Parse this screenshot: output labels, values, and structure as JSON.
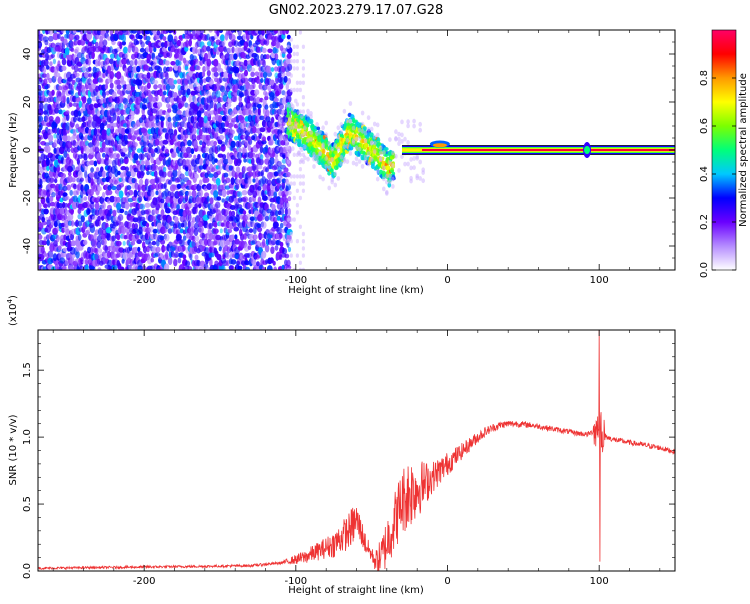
{
  "title": "GN02.2023.279.17.07.G28",
  "chart_data": [
    {
      "type": "heatmap",
      "title": "GN02.2023.279.17.07.G28",
      "xlabel": "Height of straight line (km)",
      "ylabel": "Frequency (Hz)",
      "xlim": [
        -270,
        150
      ],
      "ylim": [
        -50,
        50
      ],
      "x_ticks": [
        -200,
        -100,
        0,
        100
      ],
      "y_ticks": [
        -40,
        -20,
        0,
        20,
        40
      ],
      "x_tick_labels": [
        "-200",
        "-100",
        "0",
        "100"
      ],
      "y_tick_labels": [
        "-40",
        "-20",
        "0",
        "20",
        "40"
      ],
      "colorbar": {
        "label": "Normalized spectral amplitude",
        "range": [
          0.0,
          1.0
        ],
        "ticks": [
          0.0,
          0.2,
          0.4,
          0.6,
          0.8
        ],
        "tick_labels": [
          "0.0",
          "0.2",
          "0.4",
          "0.6",
          "0.8"
        ],
        "colormap": [
          "#ffffff",
          "#b58cff",
          "#6a00ff",
          "#0000ff",
          "#00c8ff",
          "#00ff7a",
          "#7cff00",
          "#ffff00",
          "#ff9a00",
          "#ff0000",
          "#ff0066"
        ]
      },
      "features": {
        "noise_region_x": [
          -270,
          -105
        ],
        "noise_amplitude": 0.15,
        "scattered_region_x": [
          -105,
          -35
        ],
        "scattered_center_frequency": [
          [
            -105,
            12
          ],
          [
            -95,
            8
          ],
          [
            -85,
            2
          ],
          [
            -75,
            -5
          ],
          [
            -65,
            8
          ],
          [
            -55,
            3
          ],
          [
            -45,
            -3
          ],
          [
            -38,
            -8
          ],
          [
            -32,
            0
          ]
        ],
        "line_start_x": -30,
        "line_frequency": 0,
        "line_amplitude": 0.95,
        "spike_x": 92
      }
    },
    {
      "type": "line",
      "xlabel": "Height of straight line (km)",
      "ylabel": "SNR (10 * v/v)",
      "y_scale_label": "(x10",
      "y_scale_exp": "4",
      "y_scale_close": ")",
      "xlim": [
        -270,
        150
      ],
      "ylim": [
        0,
        1.8
      ],
      "x_ticks": [
        -200,
        -100,
        0,
        100
      ],
      "y_ticks": [
        0.0,
        0.5,
        1.0,
        1.5
      ],
      "x_tick_labels": [
        "-200",
        "-100",
        "0",
        "100"
      ],
      "y_tick_labels": [
        "0.0",
        "0.5",
        "1.0",
        "1.5"
      ],
      "color": "#ee3333",
      "envelope": [
        [
          -270,
          0.02
        ],
        [
          -240,
          0.025
        ],
        [
          -200,
          0.03
        ],
        [
          -160,
          0.035
        ],
        [
          -130,
          0.04
        ],
        [
          -110,
          0.06
        ],
        [
          -95,
          0.1
        ],
        [
          -85,
          0.15
        ],
        [
          -75,
          0.2
        ],
        [
          -65,
          0.3
        ],
        [
          -60,
          0.38
        ],
        [
          -57,
          0.3
        ],
        [
          -54,
          0.2
        ],
        [
          -50,
          0.12
        ],
        [
          -47,
          0.07
        ],
        [
          -43,
          0.12
        ],
        [
          -39,
          0.25
        ],
        [
          -34,
          0.4
        ],
        [
          -30,
          0.52
        ],
        [
          -26,
          0.58
        ],
        [
          -20,
          0.62
        ],
        [
          -15,
          0.65
        ],
        [
          -10,
          0.7
        ],
        [
          -5,
          0.75
        ],
        [
          0,
          0.8
        ],
        [
          5,
          0.85
        ],
        [
          10,
          0.9
        ],
        [
          15,
          0.95
        ],
        [
          20,
          1.0
        ],
        [
          25,
          1.04
        ],
        [
          30,
          1.07
        ],
        [
          35,
          1.09
        ],
        [
          40,
          1.1
        ],
        [
          45,
          1.1
        ],
        [
          55,
          1.09
        ],
        [
          65,
          1.07
        ],
        [
          75,
          1.05
        ],
        [
          85,
          1.03
        ],
        [
          92,
          1.02
        ],
        [
          96,
          1.04
        ],
        [
          100,
          1.05
        ],
        [
          105,
          1.0
        ],
        [
          110,
          0.98
        ],
        [
          120,
          0.96
        ],
        [
          130,
          0.94
        ],
        [
          140,
          0.92
        ],
        [
          150,
          0.89
        ]
      ],
      "noise": [
        [
          -270,
          0.008
        ],
        [
          -110,
          0.01
        ],
        [
          -95,
          0.05
        ],
        [
          -80,
          0.08
        ],
        [
          -62,
          0.15
        ],
        [
          -50,
          0.05
        ],
        [
          -40,
          0.2
        ],
        [
          -25,
          0.28
        ],
        [
          -10,
          0.12
        ],
        [
          10,
          0.06
        ],
        [
          30,
          0.03
        ],
        [
          60,
          0.02
        ],
        [
          150,
          0.02
        ]
      ],
      "spike": {
        "x": 100,
        "max": 1.8,
        "min": 0.07
      }
    }
  ]
}
